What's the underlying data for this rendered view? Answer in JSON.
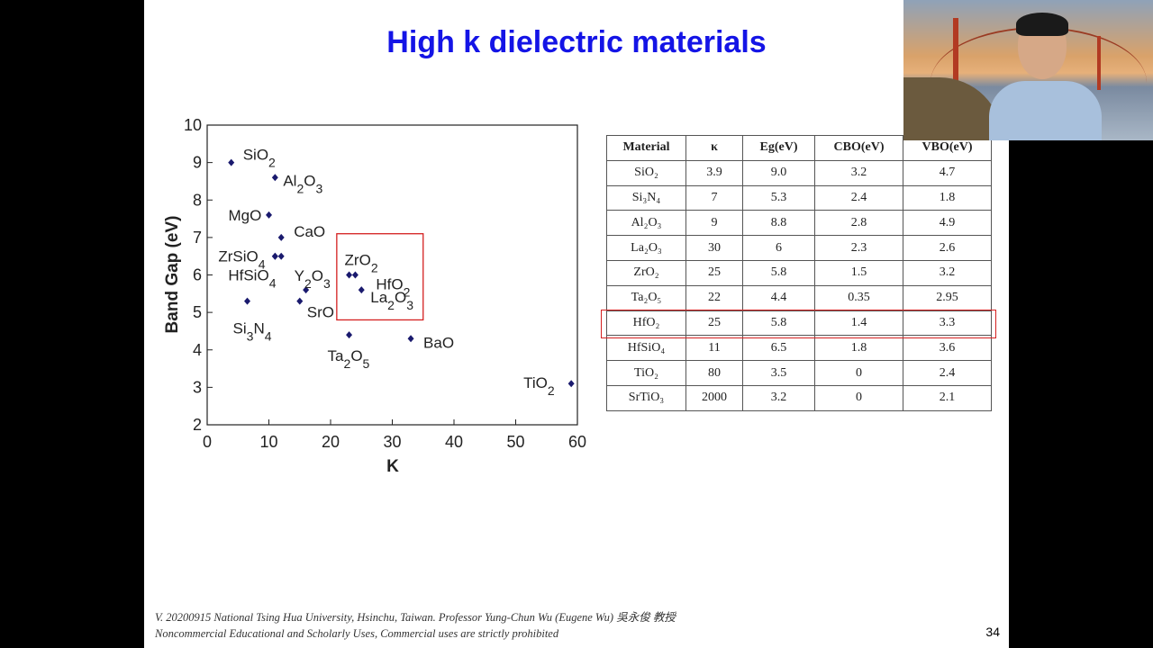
{
  "slide": {
    "title": "High k dielectric materials",
    "footer_line1": "V. 20200915 National Tsing Hua University, Hsinchu, Taiwan. Professor Yung-Chun Wu (Eugene Wu) 吳永俊 教授",
    "footer_line2": "Noncommercial Educational and Scholarly Uses, Commercial uses are strictly prohibited",
    "page_number": "34"
  },
  "chart_data": {
    "type": "scatter",
    "title": "",
    "xlabel": "K",
    "ylabel": "Band Gap (eV)",
    "xlim": [
      0,
      60
    ],
    "ylim": [
      2,
      10
    ],
    "xticks": [
      "0",
      "10",
      "20",
      "30",
      "40",
      "50",
      "60"
    ],
    "yticks": [
      "2",
      "3",
      "4",
      "5",
      "6",
      "7",
      "8",
      "9",
      "10"
    ],
    "grid": false,
    "marker_color": "#1a1a6e",
    "highlight_color": "#d42020",
    "highlight_region": {
      "x": [
        21,
        35
      ],
      "y": [
        4.8,
        7.1
      ]
    },
    "points": [
      {
        "label": "SiO",
        "sub": "2",
        "x": 3.9,
        "y": 9.0
      },
      {
        "label": "Al",
        "sub": "2",
        "label2": "O",
        "sub2": "3",
        "x": 11,
        "y": 8.6
      },
      {
        "label": "MgO",
        "x": 10,
        "y": 7.6
      },
      {
        "label": "CaO",
        "x": 12,
        "y": 7.0
      },
      {
        "label": "ZrSiO",
        "sub": "4",
        "x": 11,
        "y": 6.5
      },
      {
        "label": "ZrSiO",
        "sub": "4",
        "x": 12,
        "y": 6.5
      },
      {
        "label": "HfSiO",
        "sub": "4",
        "x": 11,
        "y": 6.5
      },
      {
        "label": "Y",
        "sub": "2",
        "label2": "O",
        "sub2": "3",
        "x": 16,
        "y": 5.6
      },
      {
        "label": "SrO",
        "x": 15,
        "y": 5.3
      },
      {
        "label": "Si",
        "sub": "3",
        "label2": "N",
        "sub2": "4",
        "x": 6.5,
        "y": 5.3
      },
      {
        "label": "ZrO",
        "sub": "2",
        "x": 23,
        "y": 6.0
      },
      {
        "label": "HfO",
        "sub": "2",
        "x": 24,
        "y": 6.0
      },
      {
        "label": "La",
        "sub": "2",
        "label2": "O",
        "sub2": "3",
        "x": 25,
        "y": 5.6
      },
      {
        "label": "Ta",
        "sub": "2",
        "label2": "O",
        "sub2": "5",
        "x": 23,
        "y": 4.4
      },
      {
        "label": "BaO",
        "x": 33,
        "y": 4.3
      },
      {
        "label": "TiO",
        "sub": "2",
        "x": 59,
        "y": 3.1
      }
    ]
  },
  "table": {
    "headers": [
      "Material",
      "κ",
      "Eg(eV)",
      "CBO(eV)",
      "VBO(eV)"
    ],
    "rows": [
      [
        "SiO₂",
        "3.9",
        "9.0",
        "3.2",
        "4.7"
      ],
      [
        "Si₃N₄",
        "7",
        "5.3",
        "2.4",
        "1.8"
      ],
      [
        "Al₂O₃",
        "9",
        "8.8",
        "2.8",
        "4.9"
      ],
      [
        "La₂O₃",
        "30",
        "6",
        "2.3",
        "2.6"
      ],
      [
        "ZrO₂",
        "25",
        "5.8",
        "1.5",
        "3.2"
      ],
      [
        "Ta₂O₅",
        "22",
        "4.4",
        "0.35",
        "2.95"
      ],
      [
        "HfO₂",
        "25",
        "5.8",
        "1.4",
        "3.3"
      ],
      [
        "HfSiO₄",
        "11",
        "6.5",
        "1.8",
        "3.6"
      ],
      [
        "TiO₂",
        "80",
        "3.5",
        "0",
        "2.4"
      ],
      [
        "SrTiO₃",
        "2000",
        "3.2",
        "0",
        "2.1"
      ]
    ],
    "highlighted_row": 6,
    "highlight_color": "#d42020"
  },
  "webcam": {
    "label": "presenter-video"
  }
}
